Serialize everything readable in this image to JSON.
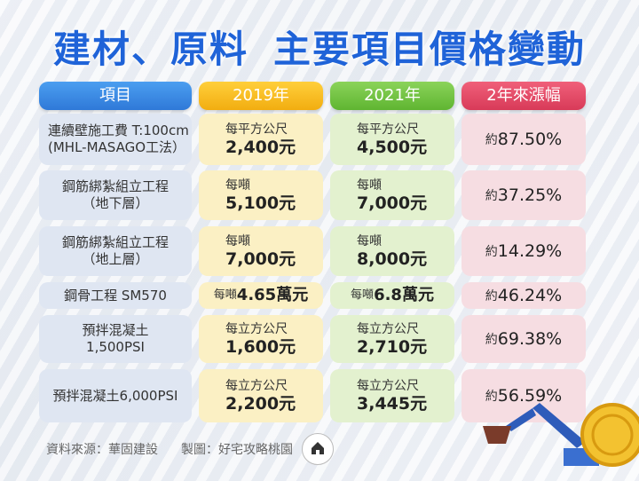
{
  "title": {
    "part1": "建材、原料",
    "part2": "主要項目價格變動"
  },
  "headers": {
    "item": "項目",
    "y2019": "2019年",
    "y2021": "2021年",
    "rise": "2年來漲幅"
  },
  "rows": [
    {
      "item_l1": "連續壁施工費 T:100cm",
      "item_l2": "(MHL-MASAGO工法）",
      "u2019": "每平方公尺",
      "p2019": "2,400元",
      "u2021": "每平方公尺",
      "p2021": "4,500元",
      "rise_pre": "約",
      "rise": "87.50%"
    },
    {
      "item_l1": "鋼筋綁紮組立工程",
      "item_l2": "（地下層）",
      "u2019": "每噸",
      "p2019": "5,100元",
      "u2021": "每噸",
      "p2021": "7,000元",
      "rise_pre": "約",
      "rise": "37.25%"
    },
    {
      "item_l1": "鋼筋綁紮組立工程",
      "item_l2": "（地上層）",
      "u2019": "每噸",
      "p2019": "7,000元",
      "u2021": "每噸",
      "p2021": "8,000元",
      "rise_pre": "約",
      "rise": "14.29%"
    },
    {
      "item_l1": "鋼骨工程 SM570",
      "item_l2": "",
      "u2019": "每噸",
      "p2019": "4.65萬元",
      "u2021": "每噸",
      "p2021": "6.8萬元",
      "rise_pre": "約",
      "rise": "46.24%"
    },
    {
      "item_l1": "預拌混凝土",
      "item_l2": "1,500PSI",
      "u2019": "每立方公尺",
      "p2019": "1,600元",
      "u2021": "每立方公尺",
      "p2021": "2,710元",
      "rise_pre": "約",
      "rise": "69.38%"
    },
    {
      "item_l1": "預拌混凝土6,000PSI",
      "item_l2": "",
      "u2019": "每立方公尺",
      "p2019": "2,200元",
      "u2021": "每立方公尺",
      "p2021": "3,445元",
      "rise_pre": "約",
      "rise": "56.59%"
    }
  ],
  "footer": {
    "source": "資料來源：華固建設",
    "made_by": "製圖：好宅攻略桃園",
    "logo_text": "好宅攻略桃園"
  },
  "colors": {
    "title": "#1f63d8",
    "item": "#2f79d8",
    "y2019": "#f2ad10",
    "y2021": "#5fb531",
    "rise": "#d83a58"
  }
}
